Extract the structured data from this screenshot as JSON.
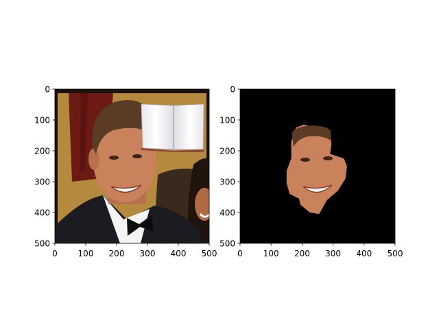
{
  "chart_data": [
    {
      "type": "image",
      "panel": "left",
      "content": "photo of a smiling man in a tuxedo with a bow tie, an open book pasted in the upper-right corner",
      "xlim": [
        0,
        500
      ],
      "ylim": [
        500,
        0
      ],
      "xticks": [
        0,
        100,
        200,
        300,
        400,
        500
      ],
      "yticks": [
        0,
        100,
        200,
        300,
        400,
        500
      ],
      "overlay": {
        "icon": "open-book-icon",
        "x_range": [
          285,
          480
        ],
        "y_range": [
          50,
          200
        ]
      }
    },
    {
      "type": "image",
      "panel": "right",
      "content": "face-only segmentation mask of the same photo on a black background",
      "xlim": [
        0,
        500
      ],
      "ylim": [
        500,
        0
      ],
      "xticks": [
        0,
        100,
        200,
        300,
        400,
        500
      ],
      "yticks": [
        0,
        100,
        200,
        300,
        400,
        500
      ],
      "background": "#000000",
      "mask_outline": [
        [
          180,
          125
        ],
        [
          205,
          115
        ],
        [
          245,
          125
        ],
        [
          290,
          140
        ],
        [
          295,
          180
        ],
        [
          290,
          210
        ],
        [
          335,
          225
        ],
        [
          345,
          250
        ],
        [
          340,
          290
        ],
        [
          315,
          330
        ],
        [
          280,
          360
        ],
        [
          255,
          405
        ],
        [
          225,
          400
        ],
        [
          195,
          375
        ],
        [
          190,
          355
        ],
        [
          160,
          340
        ],
        [
          150,
          305
        ],
        [
          150,
          265
        ],
        [
          165,
          225
        ],
        [
          165,
          170
        ]
      ]
    }
  ],
  "colors": {
    "frame": "#000000",
    "wall_gold": "#b58a3e",
    "curtain": "#6e1a14",
    "skin": "#c9825c",
    "tuxedo": "#1b1c22",
    "shirt": "#f4f4f2",
    "hair": "#5a3b26"
  }
}
